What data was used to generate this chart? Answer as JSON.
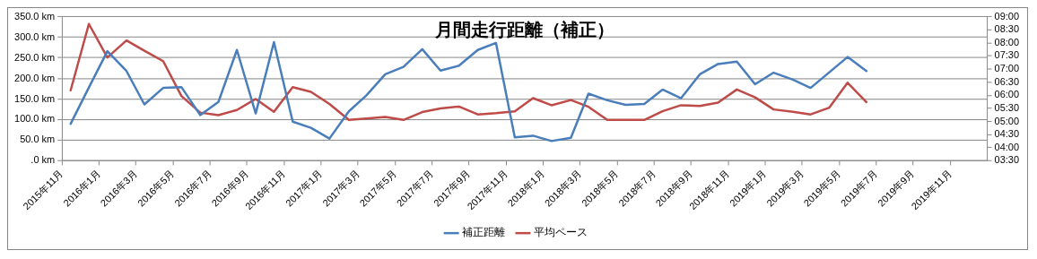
{
  "chart_data": {
    "type": "line",
    "title": "月間走行距離（補正）",
    "x": [
      "2015-11-15",
      "2015-12-15",
      "2016-01-15",
      "2016-02-15",
      "2016-03-15",
      "2016-04-15",
      "2016-05-15",
      "2016-06-15",
      "2016-07-15",
      "2016-08-15",
      "2016-09-15",
      "2016-10-15",
      "2016-11-15",
      "2016-12-15",
      "2017-01-15",
      "2017-02-15",
      "2017-03-15",
      "2017-04-15",
      "2017-05-15",
      "2017-06-15",
      "2017-07-15",
      "2017-08-15",
      "2017-09-15",
      "2017-10-15",
      "2017-11-15",
      "2017-12-15",
      "2018-01-15",
      "2018-02-15",
      "2018-03-15",
      "2018-04-15",
      "2018-05-15",
      "2018-06-15",
      "2018-07-15",
      "2018-08-15",
      "2018-09-15",
      "2018-10-15",
      "2018-11-15",
      "2018-12-15",
      "2019-01-15",
      "2019-02-15",
      "2019-03-15",
      "2019-04-15",
      "2019-05-15",
      "2019-06-15"
    ],
    "series": [
      {
        "name": "補正距離",
        "color": "#4a7ebb",
        "values": [
          90,
          178,
          266,
          218,
          137,
          177,
          179,
          111,
          143,
          269,
          115,
          288,
          95,
          80,
          54,
          120,
          159,
          210,
          228,
          271,
          219,
          231,
          269,
          286,
          57,
          61,
          48,
          56,
          163,
          147,
          136,
          138,
          173,
          152,
          210,
          235,
          241,
          186,
          214,
          197,
          177,
          215,
          252,
          218
        ]
      },
      {
        "name": "平均ペース",
        "color": "#be4b48",
        "axis": "y2",
        "values": [
          6.19,
          8.72,
          7.44,
          8.09,
          7.7,
          7.3,
          5.97,
          5.34,
          5.24,
          5.44,
          5.86,
          5.37,
          6.31,
          6.13,
          5.67,
          5.06,
          5.11,
          5.17,
          5.06,
          5.36,
          5.5,
          5.57,
          5.27,
          5.32,
          5.39,
          5.89,
          5.62,
          5.82,
          5.56,
          5.06,
          5.06,
          5.06,
          5.39,
          5.62,
          5.59,
          5.72,
          6.22,
          5.92,
          5.46,
          5.37,
          5.27,
          5.53,
          6.48,
          5.74
        ]
      }
    ],
    "xlim": [
      "2015-11",
      "2020-01"
    ],
    "xticks": [
      {
        "value": "2015-11",
        "label": "2015年11月"
      },
      {
        "value": "2016-01",
        "label": "2016年1月"
      },
      {
        "value": "2016-03",
        "label": "2016年3月"
      },
      {
        "value": "2016-05",
        "label": "2016年5月"
      },
      {
        "value": "2016-07",
        "label": "2016年7月"
      },
      {
        "value": "2016-09",
        "label": "2016年9月"
      },
      {
        "value": "2016-11",
        "label": "2016年11月"
      },
      {
        "value": "2017-01",
        "label": "2017年1月"
      },
      {
        "value": "2017-03",
        "label": "2017年3月"
      },
      {
        "value": "2017-05",
        "label": "2017年5月"
      },
      {
        "value": "2017-07",
        "label": "2017年7月"
      },
      {
        "value": "2017-09",
        "label": "2017年9月"
      },
      {
        "value": "2017-11",
        "label": "2017年11月"
      },
      {
        "value": "2018-01",
        "label": "2018年1月"
      },
      {
        "value": "2018-03",
        "label": "2018年3月"
      },
      {
        "value": "2018-05",
        "label": "2018年5月"
      },
      {
        "value": "2018-07",
        "label": "2018年7月"
      },
      {
        "value": "2018-09",
        "label": "2018年9月"
      },
      {
        "value": "2018-11",
        "label": "2018年11月"
      },
      {
        "value": "2019-01",
        "label": "2019年1月"
      },
      {
        "value": "2019-03",
        "label": "2019年3月"
      },
      {
        "value": "2019-05",
        "label": "2019年5月"
      },
      {
        "value": "2019-07",
        "label": "2019年7月"
      },
      {
        "value": "2019-09",
        "label": "2019年9月"
      },
      {
        "value": "2019-11",
        "label": "2019年11月"
      }
    ],
    "ylim": [
      0,
      350
    ],
    "yticks": [
      {
        "value": 0,
        "label": ".0 km"
      },
      {
        "value": 50,
        "label": "50.0 km"
      },
      {
        "value": 100,
        "label": "100.0 km"
      },
      {
        "value": 150,
        "label": "150.0 km"
      },
      {
        "value": 200,
        "label": "200.0 km"
      },
      {
        "value": 250,
        "label": "250.0 km"
      },
      {
        "value": 300,
        "label": "300.0 km"
      },
      {
        "value": 350,
        "label": "350.0 km"
      }
    ],
    "y2lim": [
      3.5,
      9
    ],
    "y2ticks": [
      {
        "value": 3.5,
        "label": "03:30"
      },
      {
        "value": 4,
        "label": "04:00"
      },
      {
        "value": 4.5,
        "label": "04:30"
      },
      {
        "value": 5,
        "label": "05:00"
      },
      {
        "value": 5.5,
        "label": "05:30"
      },
      {
        "value": 6,
        "label": "06:00"
      },
      {
        "value": 6.5,
        "label": "06:30"
      },
      {
        "value": 7,
        "label": "07:00"
      },
      {
        "value": 7.5,
        "label": "07:30"
      },
      {
        "value": 8,
        "label": "08:00"
      },
      {
        "value": 8.5,
        "label": "08:30"
      },
      {
        "value": 9,
        "label": "09:00"
      }
    ],
    "grid": "y",
    "legend": "bottom",
    "marker": "none",
    "line_style": "solid"
  }
}
